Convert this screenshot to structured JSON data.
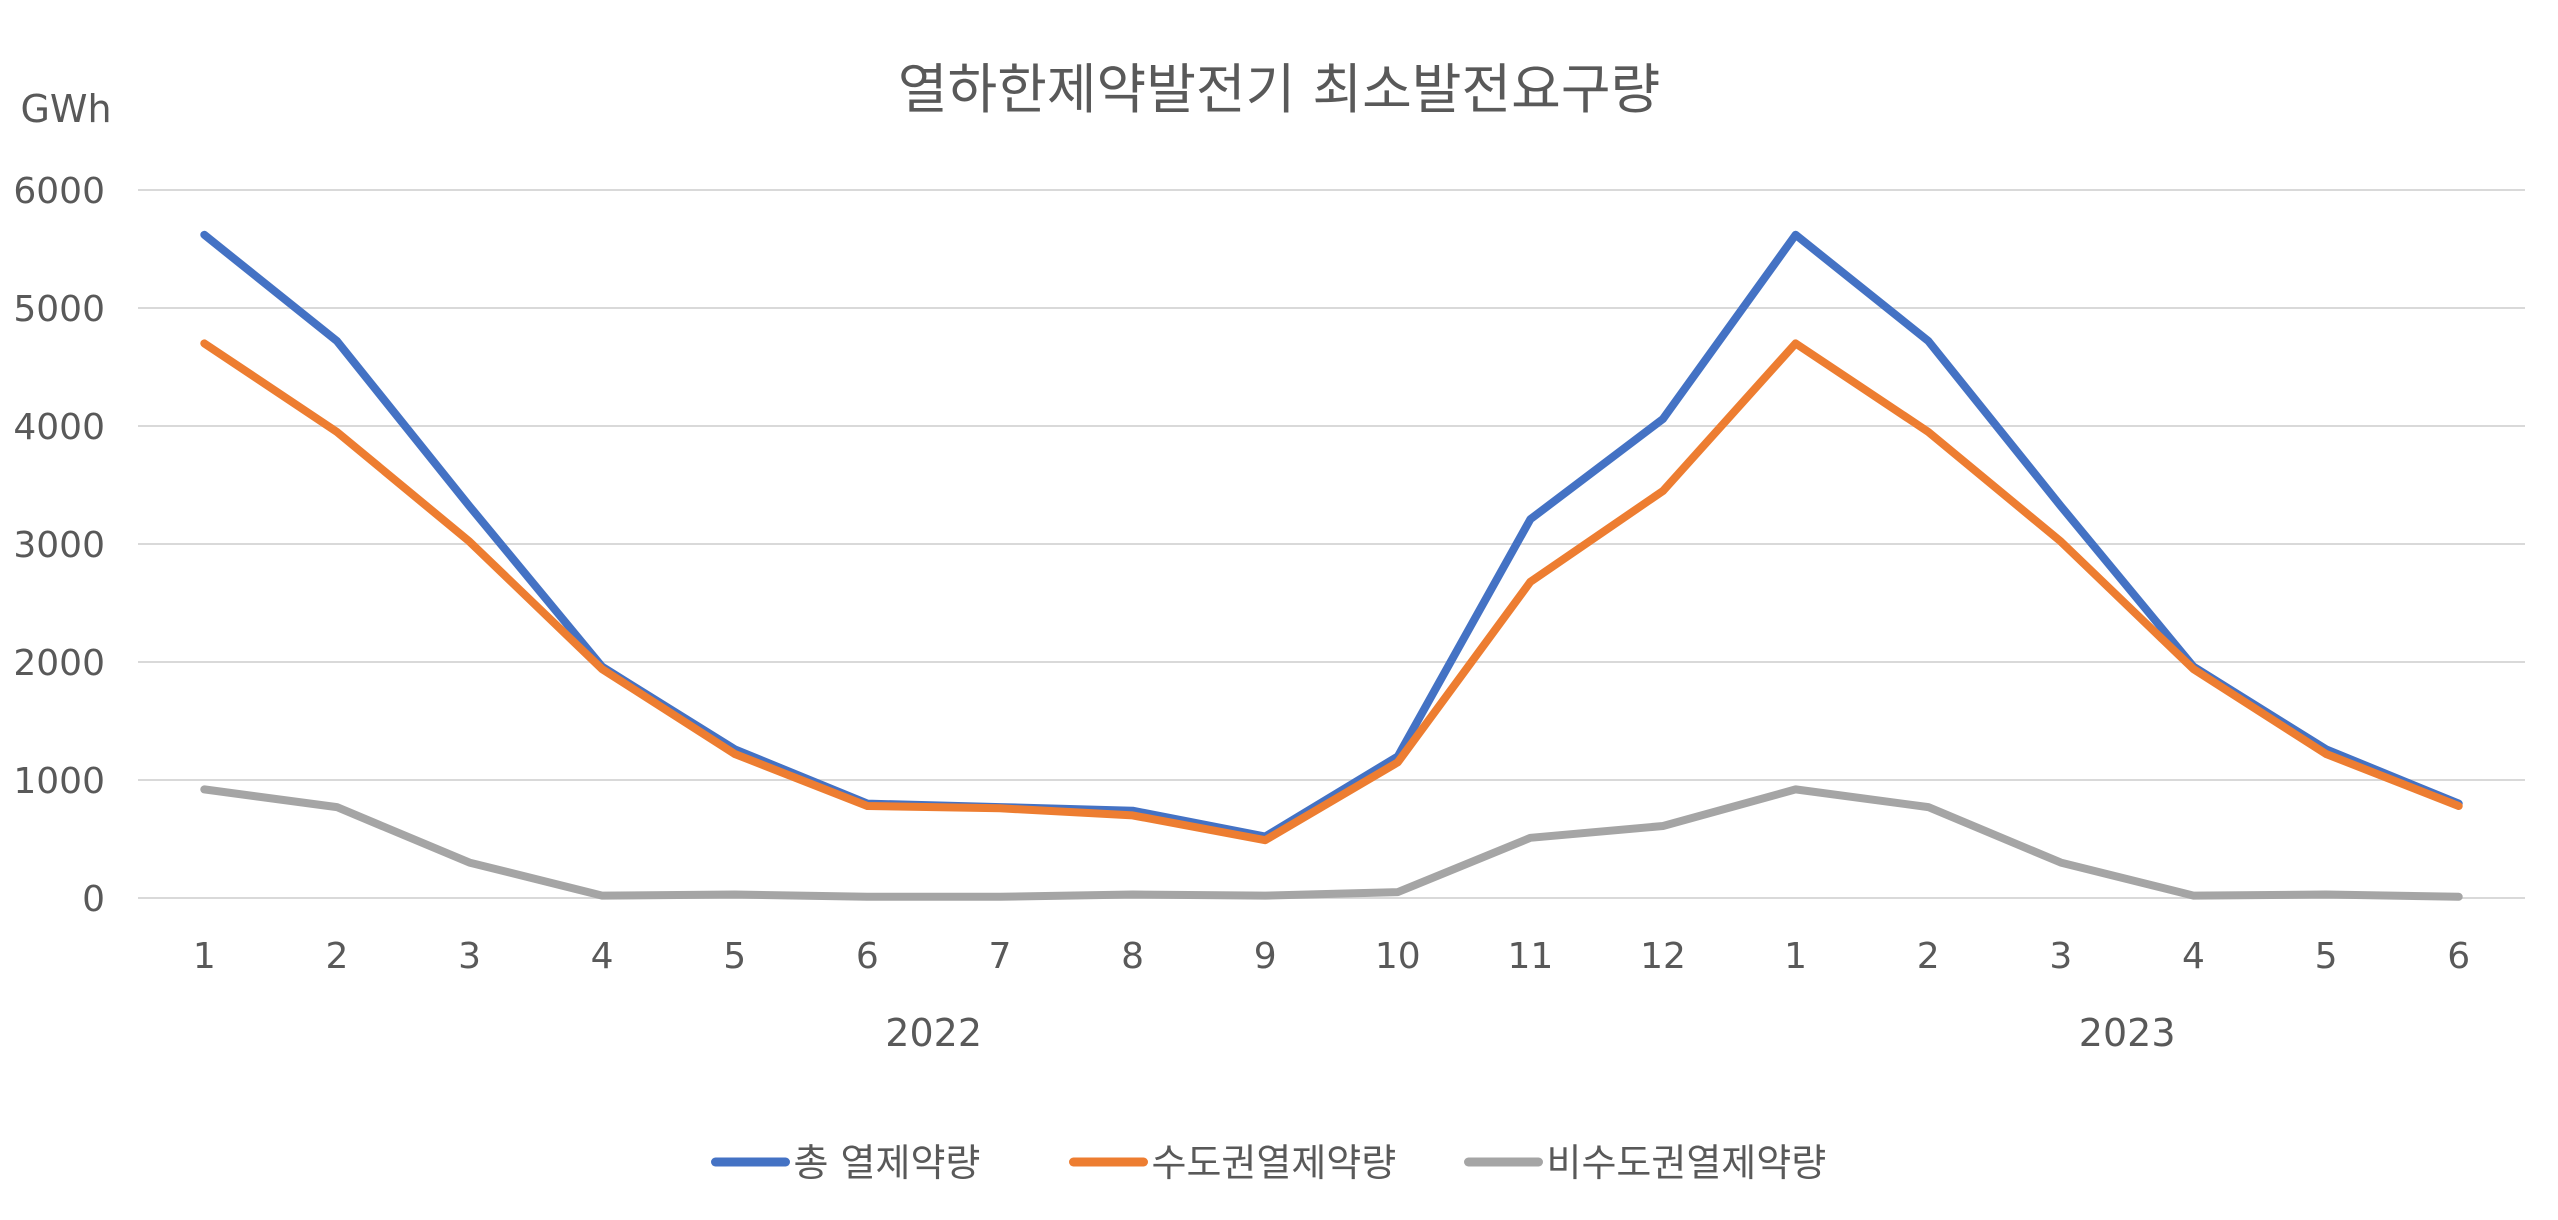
{
  "chart_data": {
    "type": "line",
    "title": "열하한제약발전기 최소발전요구량",
    "ylabel": "GWh",
    "ylim": [
      0,
      6000
    ],
    "yticks": [
      0,
      1000,
      2000,
      3000,
      4000,
      5000,
      6000
    ],
    "grid": true,
    "legend_position": "bottom",
    "categories": [
      "1",
      "2",
      "3",
      "4",
      "5",
      "6",
      "7",
      "8",
      "9",
      "10",
      "11",
      "12",
      "1",
      "2",
      "3",
      "4",
      "5",
      "6"
    ],
    "year_groups": [
      {
        "label": "2022",
        "start": 0,
        "end": 11
      },
      {
        "label": "2023",
        "start": 12,
        "end": 17
      }
    ],
    "series": [
      {
        "name": "총 열제약량",
        "color": "#4472C4",
        "values": [
          5620,
          4720,
          3320,
          1960,
          1260,
          800,
          770,
          740,
          520,
          1200,
          3210,
          4060,
          5620,
          4720,
          3320,
          1960,
          1260,
          800
        ]
      },
      {
        "name": "수도권열제약량",
        "color": "#ED7D31",
        "values": [
          4700,
          3950,
          3020,
          1940,
          1220,
          780,
          760,
          700,
          490,
          1150,
          2680,
          3450,
          4700,
          3950,
          3020,
          1940,
          1220,
          780
        ]
      },
      {
        "name": "비수도권열제약량",
        "color": "#A5A5A5",
        "values": [
          920,
          770,
          300,
          20,
          30,
          10,
          10,
          30,
          20,
          50,
          510,
          610,
          920,
          770,
          300,
          20,
          30,
          10
        ]
      }
    ]
  }
}
